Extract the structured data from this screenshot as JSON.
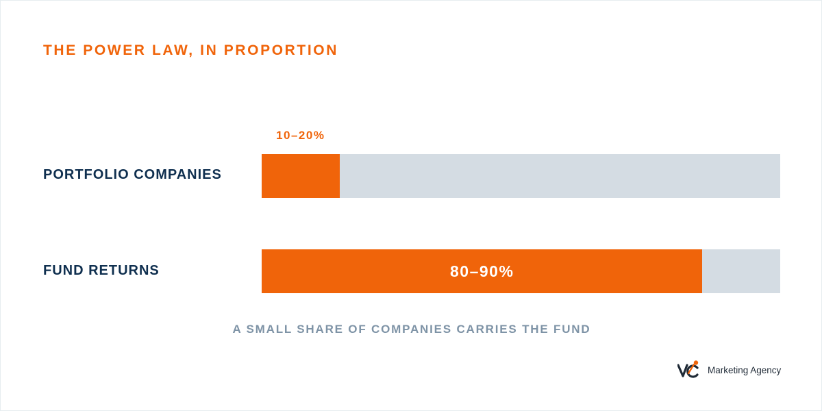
{
  "title": "THE POWER LAW, IN PROPORTION",
  "caption": "A SMALL SHARE OF COMPANIES CARRIES THE FUND",
  "logo": {
    "text": "Marketing Agency"
  },
  "colors": {
    "accent": "#f0640a",
    "track": "#d4dce3",
    "label": "#0f2f4f",
    "caption": "#7e93a6"
  },
  "chart_data": {
    "type": "bar",
    "orientation": "horizontal",
    "categories": [
      "PORTFOLIO COMPANIES",
      "FUND RETURNS"
    ],
    "value_labels": [
      "10–20%",
      "80–90%"
    ],
    "values": [
      15,
      85
    ],
    "xlim": [
      0,
      100
    ]
  }
}
